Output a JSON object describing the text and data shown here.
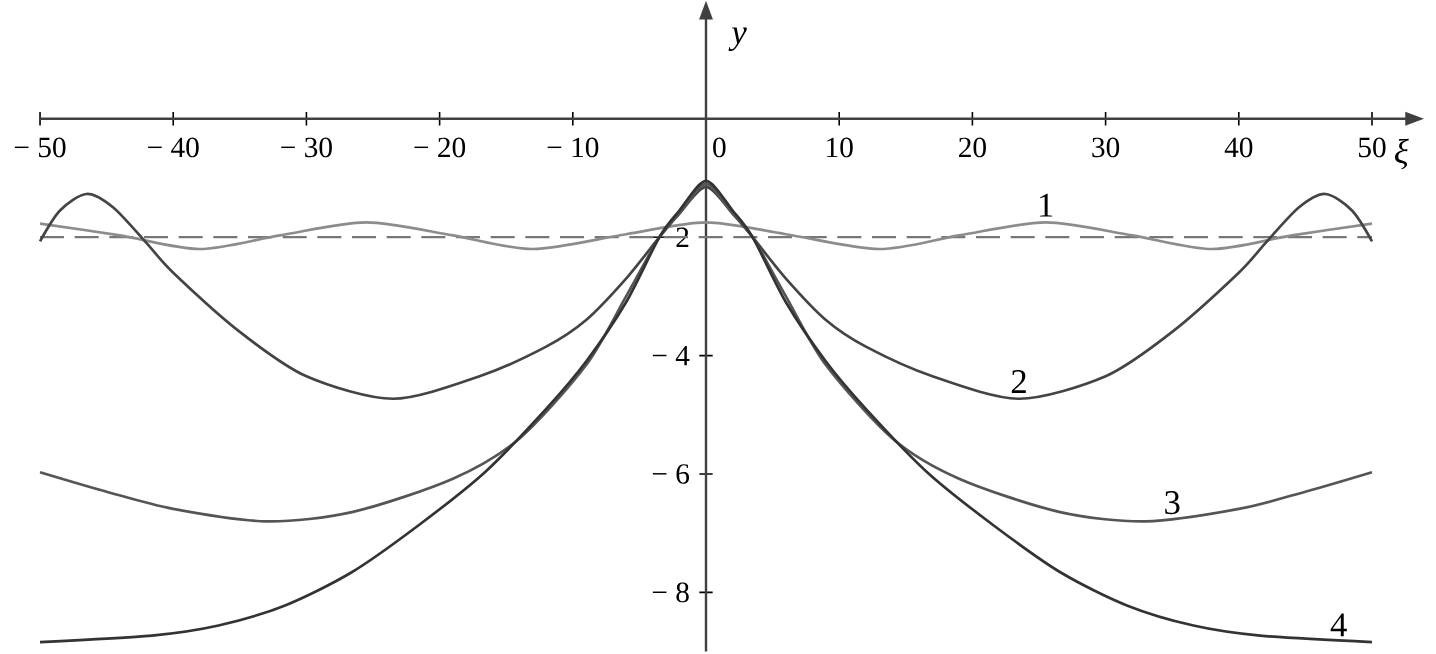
{
  "chart_data": {
    "type": "line",
    "xlabel": "ξ",
    "ylabel": "y",
    "xlim": [
      -50,
      52.6
    ],
    "ylim": [
      -9.0,
      1.7
    ],
    "xticks": [
      {
        "value": -50,
        "label": "− 50"
      },
      {
        "value": -40,
        "label": "− 40"
      },
      {
        "value": -30,
        "label": "− 30"
      },
      {
        "value": -20,
        "label": "− 20"
      },
      {
        "value": -10,
        "label": "− 10"
      },
      0,
      10,
      20,
      30,
      40,
      50
    ],
    "yticks": [
      {
        "value": -8,
        "label": "− 8"
      },
      {
        "value": -6,
        "label": "− 6"
      },
      {
        "value": -4,
        "label": "− 4"
      },
      {
        "value": -2,
        "label": "− 2"
      }
    ],
    "grid": false,
    "marker": "none",
    "line_style": "solid",
    "series": [
      {
        "color": "#8c8c8c",
        "x": [
          -50,
          -44,
          -38,
          -32,
          -25.5,
          -19,
          -13,
          -6,
          0,
          6,
          13,
          19,
          25.5,
          32,
          38,
          44,
          50
        ],
        "values": [
          -1.77,
          -1.97,
          -2.2,
          -1.97,
          -1.75,
          -1.97,
          -2.2,
          -1.95,
          -1.75,
          -1.95,
          -2.2,
          -1.97,
          -1.75,
          -1.97,
          -2.2,
          -1.97,
          -1.77
        ]
      },
      {
        "color": "#444444",
        "x": [
          -50,
          -48.5,
          -46.5,
          -44.5,
          -42,
          -40,
          -35,
          -30,
          -23.5,
          -17,
          -12,
          -9,
          -6,
          -3.5,
          -2,
          0,
          2,
          3.5,
          6,
          9,
          12,
          17,
          23.5,
          30,
          35,
          40,
          42,
          44.5,
          46.5,
          48.5,
          50
        ],
        "values": [
          -2.07,
          -1.55,
          -1.27,
          -1.5,
          -2.1,
          -2.6,
          -3.6,
          -4.35,
          -4.73,
          -4.35,
          -3.85,
          -3.4,
          -2.7,
          -2.0,
          -1.6,
          -1.15,
          -1.6,
          -2.0,
          -2.7,
          -3.4,
          -3.85,
          -4.35,
          -4.73,
          -4.35,
          -3.6,
          -2.6,
          -2.1,
          -1.5,
          -1.27,
          -1.55,
          -2.07
        ]
      },
      {
        "color": "#555555",
        "x": [
          -50,
          -45,
          -40,
          -33,
          -26.5,
          -19,
          -14,
          -9,
          -6,
          -3.5,
          -2,
          0,
          2,
          3.5,
          6,
          9,
          14,
          19,
          26.5,
          33,
          40,
          45,
          50
        ],
        "values": [
          -5.97,
          -6.3,
          -6.59,
          -6.8,
          -6.64,
          -6.08,
          -5.4,
          -4.16,
          -3.0,
          -2.0,
          -1.6,
          -1.1,
          -1.6,
          -2.0,
          -3.0,
          -4.16,
          -5.4,
          -6.08,
          -6.64,
          -6.8,
          -6.59,
          -6.3,
          -5.97
        ]
      },
      {
        "color": "#333333",
        "x": [
          -50,
          -41.6,
          -36.6,
          -31.6,
          -26.6,
          -21.6,
          -16.6,
          -12,
          -9,
          -6,
          -3.5,
          -2,
          0,
          2,
          3.5,
          6,
          9,
          12,
          16.6,
          21.6,
          26.6,
          31.6,
          36.6,
          41.6,
          50
        ],
        "values": [
          -8.84,
          -8.73,
          -8.56,
          -8.22,
          -7.66,
          -6.87,
          -5.97,
          -4.9,
          -4.1,
          -3.1,
          -2.0,
          -1.55,
          -1.05,
          -1.55,
          -2.0,
          -3.1,
          -4.1,
          -4.9,
          -5.97,
          -6.87,
          -7.66,
          -8.22,
          -8.56,
          -8.73,
          -8.84
        ]
      }
    ],
    "ref_lines": [
      {
        "axis": "y",
        "value": -2,
        "color": "#777777",
        "line_style": "dashed"
      }
    ],
    "annotations": [
      {
        "text": "1",
        "x": 25.5,
        "y": -1.75
      },
      {
        "text": "2",
        "x": 23.5,
        "y": -4.73
      },
      {
        "text": "3",
        "x": 35,
        "y": -6.78
      },
      {
        "text": "4",
        "x": 47.5,
        "y": -8.84
      }
    ]
  }
}
